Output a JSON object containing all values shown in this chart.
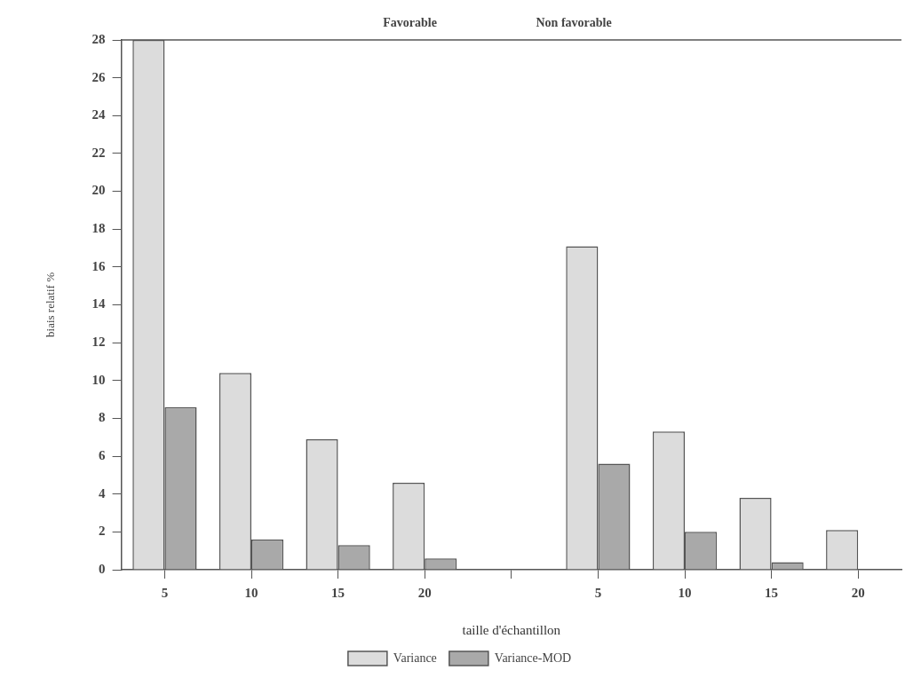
{
  "chart_data": {
    "type": "bar",
    "xlabel": "taille d'échantillon",
    "ylabel": "biais relatif %",
    "annotations": [
      "Favorable",
      "Non favorable"
    ],
    "categories": [
      "5",
      "10",
      "15",
      "20",
      null,
      "5",
      "10",
      "15",
      "20"
    ],
    "series": [
      {
        "name": "Variance",
        "color": "#dcdcdc",
        "values": [
          28,
          10.4,
          6.9,
          4.6,
          null,
          17.1,
          7.3,
          3.8,
          2.1
        ]
      },
      {
        "name": "Variance-MOD",
        "color": "#a9a9a9",
        "values": [
          8.6,
          1.6,
          1.3,
          0.6,
          null,
          5.6,
          2.0,
          0.4,
          0
        ]
      }
    ],
    "ylim": [
      0,
      28
    ],
    "yticks": [
      0,
      2,
      4,
      6,
      8,
      10,
      12,
      14,
      16,
      18,
      20,
      22,
      24,
      26,
      28
    ],
    "grid": false,
    "legend": "bottom"
  }
}
